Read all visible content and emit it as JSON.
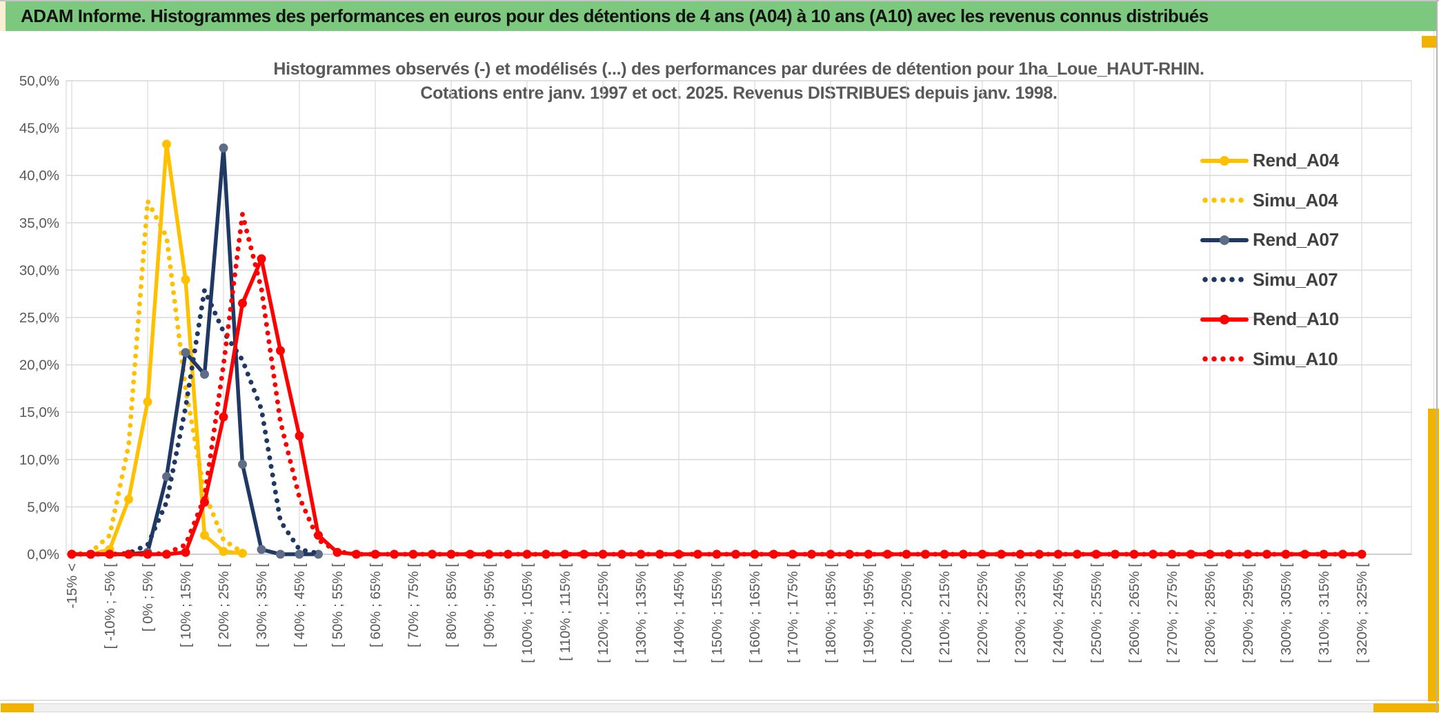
{
  "window": {
    "title": "ADAM Informe. Histogrammes des performances en euros pour des détentions de 4 ans (A04) à 10 ans (A10) avec les revenus connus distribués"
  },
  "chart": {
    "title_line1": "Histogrammes observés (-) et modélisés (...) des performances par durées de détention pour 1ha_Loue_HAUT-RHIN.",
    "title_line2": "Cotations entre janv. 1997 et oct. 2025. Revenus DISTRIBUES depuis janv. 1998."
  },
  "chart_data": {
    "type": "line",
    "title": "Histogrammes observés (-) et modélisés (...) des performances par durées de détention pour 1ha_Loue_HAUT-RHIN. Cotations entre janv. 1997 et oct. 2025. Revenus DISTRIBUES depuis janv. 1998.",
    "xlabel": "",
    "ylabel": "",
    "ylim": [
      0,
      50
    ],
    "y_tick_step_pct": 5,
    "y_tick_labels": [
      "0,0%",
      "5,0%",
      "10,0%",
      "15,0%",
      "20,0%",
      "25,0%",
      "30,0%",
      "35,0%",
      "40,0%",
      "45,0%",
      "50,0%"
    ],
    "bins_total": 69,
    "bin_width_pct": 5,
    "label_every_bins": 2,
    "grid": true,
    "legend_position": "right",
    "x_labels": [
      "-15% <",
      "[ -10% ; -5% [",
      "[ 0% ; 5% [",
      "[ 10% ; 15% [",
      "[ 20% ; 25% [",
      "[ 30% ; 35% [",
      "[ 40% ; 45% [",
      "[ 50% ; 55% [",
      "[ 60% ; 65% [",
      "[ 70% ; 75% [",
      "[ 80% ; 85% [",
      "[ 90% ; 95% [",
      "[ 100% ; 105% [",
      "[ 110% ; 115% [",
      "[ 120% ; 125% [",
      "[ 130% ; 135% [",
      "[ 140% ; 145% [",
      "[ 150% ; 155% [",
      "[ 160% ; 165% [",
      "[ 170% ; 175% [",
      "[ 180% ; 185% [",
      "[ 190% ; 195% [",
      "[ 200% ; 205% [",
      "[ 210% ; 215% [",
      "[ 220% ; 225% [",
      "[ 230% ; 235% [",
      "[ 240% ; 245% [",
      "[ 250% ; 255% [",
      "[ 260% ; 265% [",
      "[ 270% ; 275% [",
      "[ 280% ; 285% [",
      "[ 290% ; 295% [",
      "[ 300% ; 305% [",
      "[ 310% ; 315% [",
      "[ 320% ; 325% ["
    ],
    "series": [
      {
        "name": "Rend_A04",
        "style": "solid",
        "color": "#FFC000",
        "marker_color": "#FFC000",
        "values": [
          0,
          0,
          0.5,
          5.8,
          16.1,
          43.3,
          29.0,
          2.0,
          0.3,
          0.1
        ]
      },
      {
        "name": "Simu_A04",
        "style": "dotted",
        "color": "#FFC000",
        "values": [
          0,
          0.2,
          2.0,
          11.5,
          37.3,
          33.5,
          17.5,
          6.5,
          1.5,
          0.2
        ]
      },
      {
        "name": "Rend_A07",
        "style": "solid",
        "color": "#1F3864",
        "marker_color": "#5E6C87",
        "values": [
          0,
          0,
          0,
          0,
          0.2,
          8.2,
          21.3,
          19.0,
          42.9,
          9.5,
          0.5,
          0,
          0,
          0
        ]
      },
      {
        "name": "Simu_A07",
        "style": "dotted",
        "color": "#1F3864",
        "values": [
          0,
          0,
          0,
          0.1,
          1.0,
          5.5,
          15.5,
          27.9,
          23.5,
          20.5,
          15.3,
          3.5,
          0.5,
          0.1
        ]
      },
      {
        "name": "Rend_A10",
        "style": "solid",
        "color": "#FF0000",
        "marker_color": "#FF0000",
        "values": [
          0,
          0,
          0,
          0,
          0,
          0,
          0.2,
          5.5,
          14.5,
          26.5,
          31.2,
          21.5,
          12.5,
          2.0,
          0.2
        ],
        "pad_to": 69
      },
      {
        "name": "Simu_A10",
        "style": "dotted",
        "color": "#FF0000",
        "values": [
          0,
          0,
          0,
          0,
          0,
          0.1,
          1.0,
          6.0,
          20.0,
          35.9,
          28.0,
          14.0,
          6.0,
          1.5,
          0.3
        ],
        "pad_to": 69
      }
    ]
  },
  "chrome": {
    "header_bg": "#7CC87E",
    "accent_gold": "#F0B400",
    "gridline_color": "#D9D9D9",
    "axis_text_color": "#595959",
    "legend_text_color": "#404040"
  }
}
